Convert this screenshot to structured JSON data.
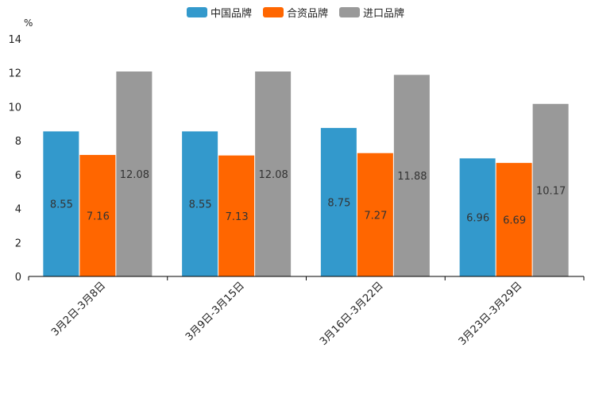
{
  "chart_data": {
    "type": "bar",
    "title": "",
    "ylabel": "%",
    "xlabel": "",
    "ylim": [
      0,
      14
    ],
    "yticks": [
      0,
      2,
      4,
      6,
      8,
      10,
      12,
      14
    ],
    "grid": false,
    "legend_position": "top-center",
    "categories": [
      "3月2日-3月8日",
      "3月9日-3月15日",
      "3月16日-3月22日",
      "3月23日-3月29日"
    ],
    "series": [
      {
        "name": "中国品牌",
        "color": "#3399CC",
        "values": [
          8.55,
          8.55,
          8.75,
          6.96
        ]
      },
      {
        "name": "合资品牌",
        "color": "#FF6600",
        "values": [
          7.16,
          7.13,
          7.27,
          6.69
        ]
      },
      {
        "name": "进口品牌",
        "color": "#999999",
        "values": [
          12.08,
          12.08,
          11.88,
          10.17
        ]
      }
    ]
  }
}
